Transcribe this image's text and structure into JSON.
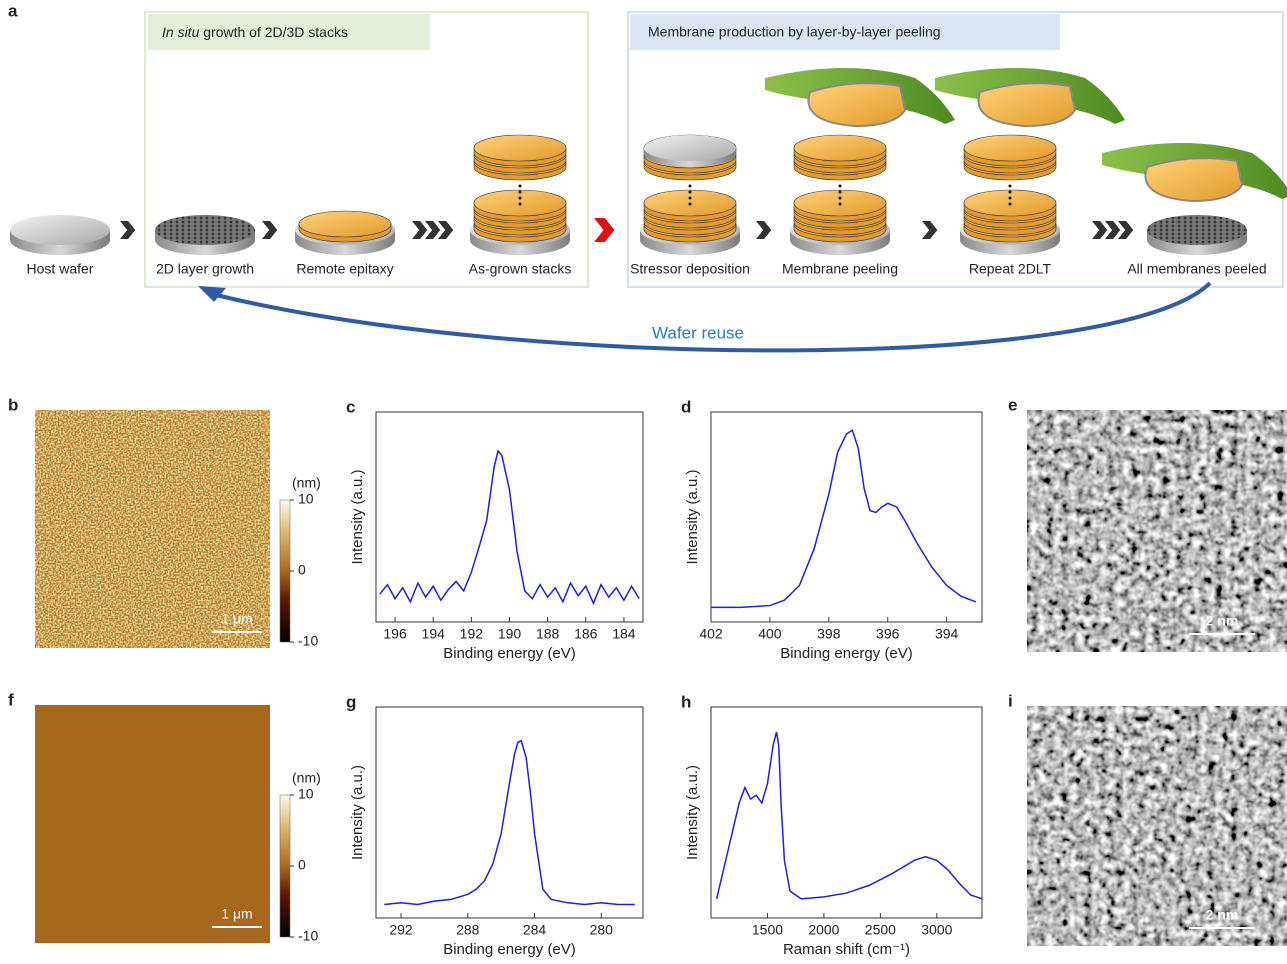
{
  "figure_a": {
    "label": "a",
    "growth_title_italic": "In situ",
    "growth_title_rest": " growth of 2D/3D stacks",
    "peeling_title": "Membrane production by layer-by-layer peeling",
    "steps": [
      "Host wafer",
      "2D layer growth",
      "Remote epitaxy",
      "As-grown stacks",
      "Stressor deposition",
      "Membrane peeling",
      "Repeat 2DLT",
      "All membranes peeled"
    ],
    "reuse_label": "Wafer reuse"
  },
  "afm": [
    {
      "label": "b",
      "colorbar_label": "(nm)",
      "colorbar_ticks": [
        10,
        0,
        -10
      ],
      "scale_bar": "1 μm"
    },
    {
      "label": "f",
      "colorbar_label": "(nm)",
      "colorbar_ticks": [
        10,
        0,
        -10
      ],
      "scale_bar": "1 μm"
    }
  ],
  "tem": [
    {
      "label": "e",
      "scale_bar": "2 nm"
    },
    {
      "label": "i",
      "scale_bar": "2 nm"
    }
  ],
  "chart_data": [
    {
      "type": "line",
      "label": "c",
      "x_label": "Binding energy (eV)",
      "y_label": "Intensity (a.u.)",
      "x": [
        196.8,
        196.4,
        196,
        195.6,
        195.2,
        194.8,
        194.4,
        194,
        193.6,
        193.2,
        192.8,
        192.4,
        192,
        191.6,
        191.2,
        190.8,
        190.6,
        190.4,
        190,
        189.6,
        189.2,
        188.8,
        188.4,
        188,
        187.6,
        187.2,
        186.8,
        186.4,
        186,
        185.6,
        185.2,
        184.8,
        184.4,
        184,
        183.6,
        183.2
      ],
      "series": [
        {
          "color": "#1f1fd6",
          "values": [
            0.08,
            0.14,
            0.05,
            0.12,
            0.03,
            0.15,
            0.06,
            0.13,
            0.04,
            0.11,
            0.16,
            0.1,
            0.22,
            0.38,
            0.55,
            0.9,
            1.0,
            0.97,
            0.75,
            0.35,
            0.1,
            0.05,
            0.14,
            0.06,
            0.12,
            0.03,
            0.15,
            0.07,
            0.13,
            0.02,
            0.14,
            0.06,
            0.12,
            0.04,
            0.13,
            0.05
          ]
        }
      ],
      "xlim": [
        197,
        183
      ],
      "ylim": [
        -0.1,
        1.25
      ],
      "xticks": [
        196,
        194,
        192,
        190,
        188,
        186,
        184
      ]
    },
    {
      "type": "line",
      "label": "d",
      "x_label": "Binding energy (eV)",
      "y_label": "Intensity (a.u.)",
      "x": [
        402,
        401,
        400,
        399.5,
        399,
        398.5,
        398,
        397.7,
        397.4,
        397.2,
        397,
        396.8,
        396.6,
        396.4,
        396.2,
        396,
        395.7,
        395.4,
        395,
        394.5,
        394,
        393.5,
        393
      ],
      "series": [
        {
          "color": "#1f1fd6",
          "values": [
            0.03,
            0.03,
            0.04,
            0.07,
            0.15,
            0.35,
            0.65,
            0.88,
            0.98,
            1.0,
            0.9,
            0.68,
            0.56,
            0.55,
            0.58,
            0.6,
            0.58,
            0.5,
            0.38,
            0.25,
            0.15,
            0.09,
            0.06
          ]
        }
      ],
      "xlim": [
        402,
        392.8
      ],
      "ylim": [
        -0.05,
        1.1
      ],
      "xticks": [
        402,
        400,
        398,
        396,
        394
      ]
    },
    {
      "type": "line",
      "label": "g",
      "x_label": "Binding energy (eV)",
      "y_label": "Intensity (a.u.)",
      "x": [
        293,
        292,
        291,
        290,
        289,
        288,
        287.5,
        287,
        286.5,
        286,
        285.5,
        285.2,
        285,
        284.8,
        284.5,
        284.2,
        284,
        283.5,
        283,
        282,
        281,
        280,
        279,
        278
      ],
      "series": [
        {
          "color": "#1f1fd6",
          "values": [
            0.03,
            0.04,
            0.03,
            0.05,
            0.06,
            0.09,
            0.12,
            0.17,
            0.27,
            0.45,
            0.75,
            0.92,
            0.99,
            1.0,
            0.9,
            0.65,
            0.45,
            0.12,
            0.06,
            0.04,
            0.03,
            0.04,
            0.03,
            0.03
          ]
        }
      ],
      "xlim": [
        293.5,
        277.5
      ],
      "ylim": [
        -0.05,
        1.2
      ],
      "xticks": [
        292,
        288,
        284,
        280
      ]
    },
    {
      "type": "line",
      "label": "h",
      "x_label": "Raman shift (cm⁻¹)",
      "y_label": "Intensity (a.u.)",
      "x": [
        1050,
        1150,
        1250,
        1300,
        1350,
        1400,
        1450,
        1500,
        1550,
        1580,
        1600,
        1620,
        1650,
        1700,
        1800,
        2000,
        2200,
        2400,
        2600,
        2800,
        2900,
        3000,
        3100,
        3200,
        3300,
        3400
      ],
      "series": [
        {
          "color": "#1f1fd6",
          "values": [
            0.1,
            0.35,
            0.6,
            0.68,
            0.62,
            0.64,
            0.6,
            0.7,
            0.9,
            0.97,
            0.9,
            0.6,
            0.3,
            0.14,
            0.1,
            0.11,
            0.13,
            0.17,
            0.23,
            0.3,
            0.32,
            0.3,
            0.25,
            0.18,
            0.12,
            0.1
          ]
        }
      ],
      "xlim": [
        1000,
        3400
      ],
      "ylim": [
        0,
        1.1
      ],
      "xticks": [
        1500,
        2000,
        2500,
        3000
      ]
    }
  ]
}
